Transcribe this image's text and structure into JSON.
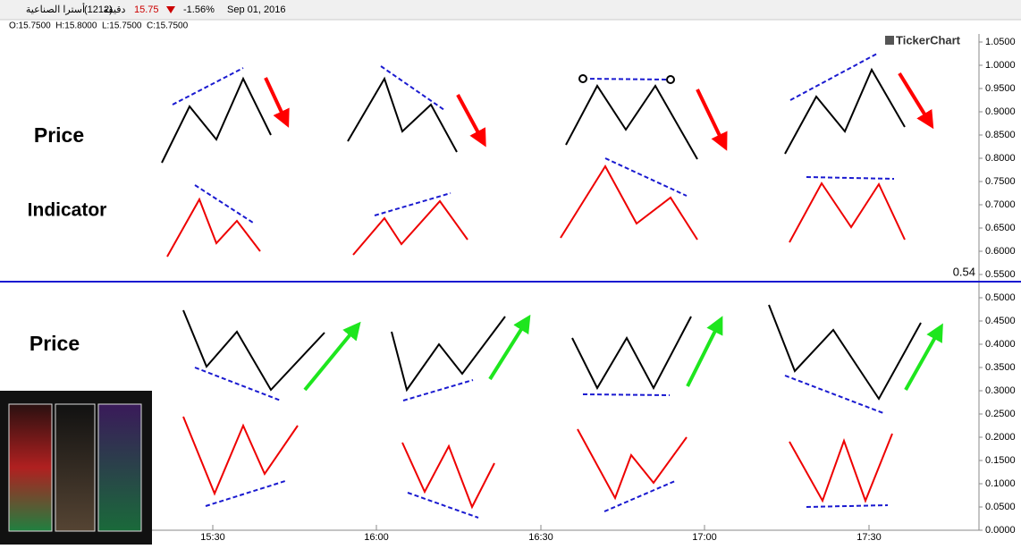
{
  "header": {
    "symbol": "أسترا الصناعية",
    "code": "(1212)",
    "interval": "دقيقة",
    "price": "15.75",
    "change": "-1.56%",
    "date": "Sep 01, 2016"
  },
  "ohlc": "O:15.7500  H:15.8000  L:15.7500  C:15.7500",
  "brand": "TickerChart",
  "axis": {
    "y_labels": [
      "1.0500",
      "1.0000",
      "0.9500",
      "0.9000",
      "0.8500",
      "0.8000",
      "0.7500",
      "0.7000",
      "0.6500",
      "0.6000",
      "0.5500",
      "0.5000",
      "0.4500",
      "0.4000",
      "0.3500",
      "0.3000",
      "0.2500",
      "0.2000",
      "0.1500",
      "0.1000",
      "0.0500",
      "0.0000"
    ],
    "x_labels": [
      "15:30",
      "16:00",
      "16:30",
      "17:00",
      "17:30"
    ],
    "level": "0.54"
  },
  "labels": [
    "Price",
    "Indicator",
    "Price"
  ]
}
